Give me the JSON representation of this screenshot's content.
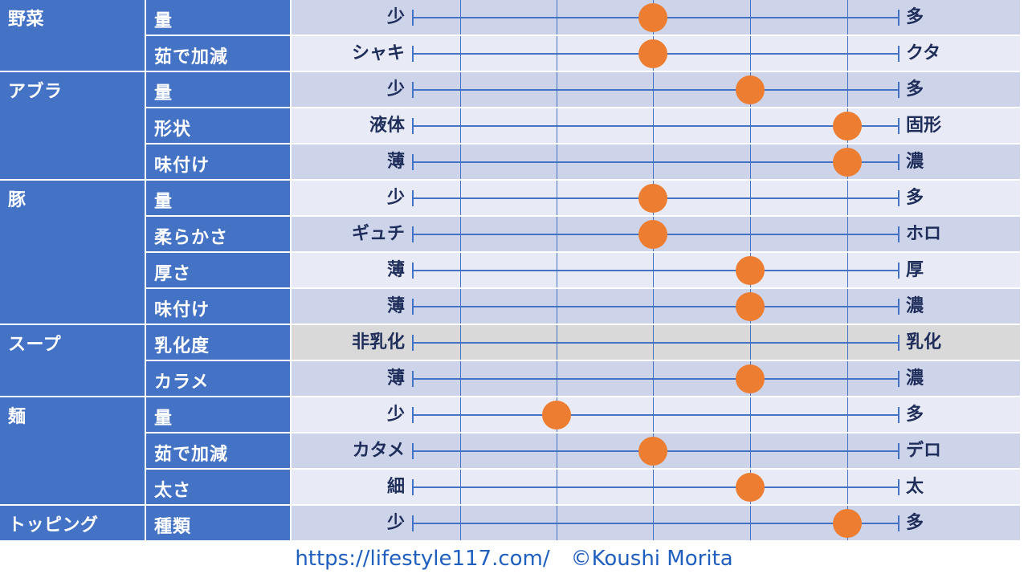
{
  "chart_data": {
    "type": "scatter",
    "scale_min": 1,
    "scale_max": 5,
    "colors": {
      "header": "#4472c4",
      "band_dark": "#cdd4ea",
      "band_light": "#e8ebf5",
      "band_gray": "#d9d9d9",
      "marker": "#ed7d31",
      "axis": "#4472c4"
    },
    "categories": [
      {
        "name": "野菜",
        "rows": [
          {
            "property": "量",
            "left": "少",
            "right": "多",
            "value": 3
          },
          {
            "property": "茹で加減",
            "left": "シャキ",
            "right": "クタ",
            "value": 3
          }
        ]
      },
      {
        "name": "アブラ",
        "rows": [
          {
            "property": "量",
            "left": "少",
            "right": "多",
            "value": 4
          },
          {
            "property": "形状",
            "left": "液体",
            "right": "固形",
            "value": 5
          },
          {
            "property": "味付け",
            "left": "薄",
            "right": "濃",
            "value": 5
          }
        ]
      },
      {
        "name": "豚",
        "rows": [
          {
            "property": "量",
            "left": "少",
            "right": "多",
            "value": 3
          },
          {
            "property": "柔らかさ",
            "left": "ギュチ",
            "right": "ホロ",
            "value": 3
          },
          {
            "property": "厚さ",
            "left": "薄",
            "right": "厚",
            "value": 4
          },
          {
            "property": "味付け",
            "left": "薄",
            "right": "濃",
            "value": 4
          }
        ]
      },
      {
        "name": "スープ",
        "rows": [
          {
            "property": "乳化度",
            "left": "非乳化",
            "right": "乳化",
            "value": null
          },
          {
            "property": "カラメ",
            "left": "薄",
            "right": "濃",
            "value": 4
          }
        ]
      },
      {
        "name": "麺",
        "rows": [
          {
            "property": "量",
            "left": "少",
            "right": "多",
            "value": 2
          },
          {
            "property": "茹で加減",
            "left": "カタメ",
            "right": "デロ",
            "value": 3
          },
          {
            "property": "太さ",
            "left": "細",
            "right": "太",
            "value": 4
          }
        ]
      },
      {
        "name": "トッピング",
        "rows": [
          {
            "property": "種類",
            "left": "少",
            "right": "多",
            "value": 5
          }
        ]
      }
    ]
  },
  "footer": {
    "text": "https://lifestyle117.com/　©Koushi Morita"
  }
}
